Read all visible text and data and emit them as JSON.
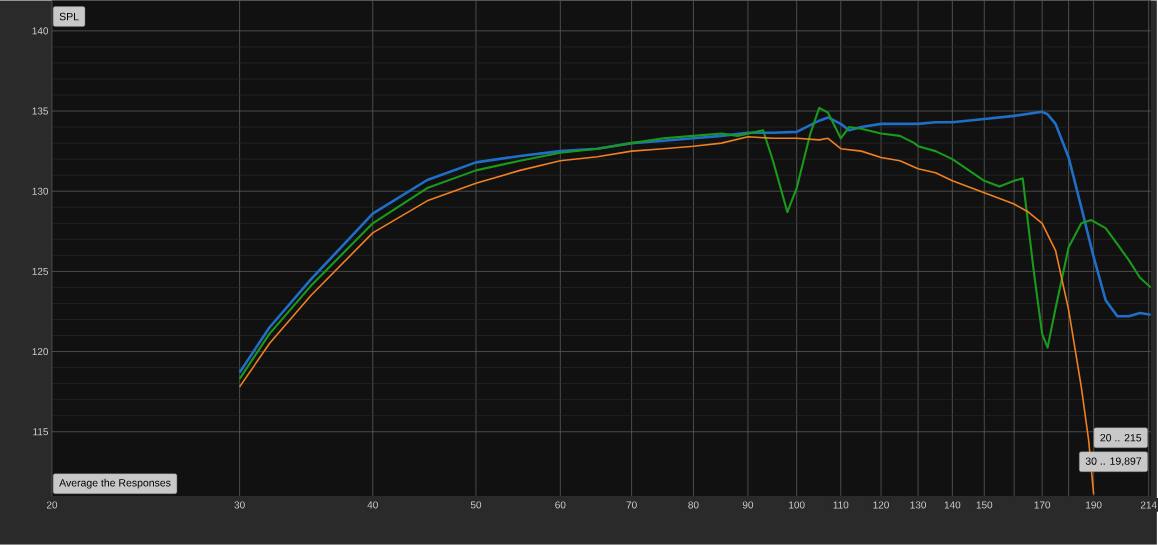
{
  "chart_data": {
    "type": "line",
    "log": "x",
    "xlim": [
      20,
      215
    ],
    "ylim": [
      111,
      141.9
    ],
    "xticks": [
      20,
      30,
      40,
      50,
      60,
      70,
      80,
      90,
      100,
      110,
      120,
      130,
      140,
      150,
      {
        "value": 160,
        "label": null
      },
      170,
      {
        "value": 180,
        "label": null
      },
      190,
      214
    ],
    "yticks": [
      115,
      120,
      125,
      130,
      135,
      140
    ],
    "grid": true,
    "marker": "none",
    "line_style": "solid",
    "annotations": [
      "SPL",
      "Average the Responses",
      "20 .. 215",
      "30 .. 19,897"
    ],
    "series": [
      {
        "color": "#1f6fc8",
        "x": [
          30,
          32,
          35,
          40,
          45,
          50,
          55,
          60,
          65,
          70,
          75,
          80,
          85,
          90,
          95,
          100,
          105,
          107,
          110,
          112,
          115,
          120,
          125,
          130,
          135,
          140,
          150,
          160,
          170,
          172,
          175,
          180,
          185,
          190,
          195,
          200,
          205,
          210,
          215
        ],
        "values": [
          118.7,
          121.5,
          124.5,
          128.6,
          130.7,
          131.8,
          132.2,
          132.5,
          132.65,
          133.0,
          133.15,
          133.3,
          133.45,
          133.65,
          133.65,
          133.7,
          134.4,
          134.6,
          134.2,
          133.8,
          134.0,
          134.2,
          134.2,
          134.2,
          134.3,
          134.3,
          134.5,
          134.7,
          134.95,
          134.8,
          134.2,
          132.1,
          129.0,
          125.9,
          123.2,
          122.2,
          122.2,
          122.4,
          122.3
        ]
      },
      {
        "color": "#1a9a1a",
        "x": [
          30,
          32,
          35,
          40,
          45,
          50,
          55,
          60,
          65,
          70,
          75,
          80,
          85,
          88,
          93,
          95,
          98,
          100,
          103,
          105,
          107,
          110,
          112,
          115,
          120,
          125,
          129,
          130,
          135,
          140,
          150,
          155,
          160,
          163,
          167,
          170,
          172,
          175,
          180,
          185,
          189,
          195,
          200,
          205,
          210,
          215
        ],
        "values": [
          118.3,
          121.1,
          124.1,
          128.0,
          130.2,
          131.3,
          131.9,
          132.4,
          132.65,
          133.0,
          133.3,
          133.45,
          133.6,
          133.45,
          133.8,
          131.9,
          128.7,
          130.2,
          133.6,
          135.2,
          134.9,
          133.3,
          134.0,
          133.9,
          133.6,
          133.45,
          133.0,
          132.8,
          132.5,
          132.0,
          130.65,
          130.3,
          130.65,
          130.8,
          124.9,
          121.1,
          120.25,
          122.7,
          126.5,
          128.0,
          128.2,
          127.7,
          126.7,
          125.7,
          124.6,
          124.0
        ]
      },
      {
        "color": "#f08020",
        "x": [
          30,
          32,
          35,
          40,
          45,
          50,
          55,
          60,
          65,
          70,
          75,
          80,
          85,
          90,
          95,
          100,
          105,
          107,
          110,
          115,
          120,
          125,
          130,
          135,
          140,
          150,
          160,
          165,
          170,
          175,
          180,
          185,
          188,
          190
        ],
        "values": [
          117.8,
          120.5,
          123.5,
          127.4,
          129.4,
          130.5,
          131.3,
          131.9,
          132.15,
          132.5,
          132.65,
          132.8,
          133.0,
          133.4,
          133.3,
          133.3,
          133.2,
          133.3,
          132.65,
          132.5,
          132.1,
          131.9,
          131.4,
          131.15,
          130.65,
          129.9,
          129.2,
          128.7,
          128.0,
          126.3,
          122.6,
          117.8,
          114.45,
          111.1
        ]
      }
    ]
  }
}
